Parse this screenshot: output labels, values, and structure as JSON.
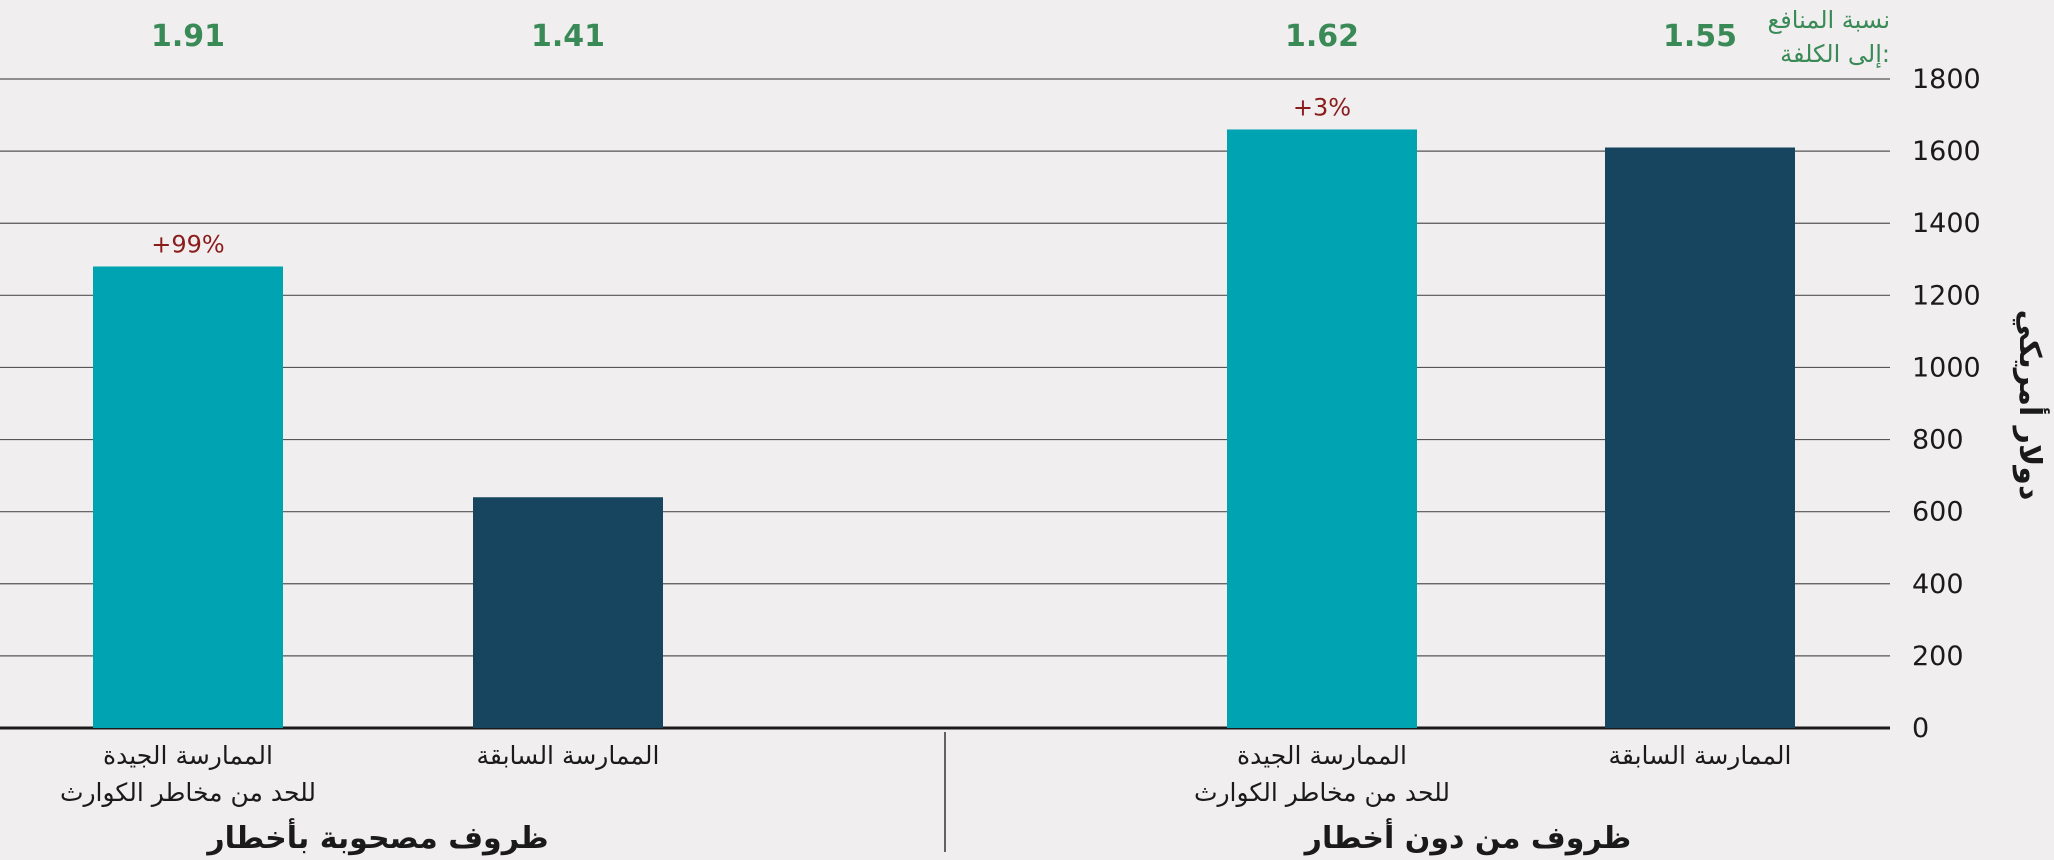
{
  "chart_data": {
    "type": "bar",
    "ylabel": "دولار أمريكي",
    "ylim": [
      0,
      1800
    ],
    "yticks": [
      "0",
      "200",
      "400",
      "600",
      "800",
      "1000",
      "1200",
      "1400",
      "1600",
      "1800"
    ],
    "grid": true,
    "ratio_title_line1": "نسبة المنافع",
    "ratio_title_line2": "إلى الكلفة:",
    "colors": {
      "previous": "#17445e",
      "good": "#00a3b1",
      "ratio": "#3a8a58",
      "percent": "#8a1c1c"
    },
    "groups": [
      {
        "label": "ظروف من دون أخطار",
        "bars": [
          {
            "label_lines": [
              "الممارسة السابقة"
            ],
            "value": 1610,
            "ratio": "1.55",
            "series": "previous"
          },
          {
            "label_lines": [
              "الممارسة الجيدة",
              "للحد من مخاطر الكوارث"
            ],
            "value": 1660,
            "ratio": "1.62",
            "change": "+3%",
            "series": "good"
          }
        ]
      },
      {
        "label": "ظروف مصحوبة بأخطار",
        "bars": [
          {
            "label_lines": [
              "الممارسة السابقة"
            ],
            "value": 640,
            "ratio": "1.41",
            "series": "previous"
          },
          {
            "label_lines": [
              "الممارسة الجيدة",
              "للحد من مخاطر الكوارث"
            ],
            "value": 1280,
            "ratio": "1.91",
            "change": "+99%",
            "series": "good"
          }
        ]
      }
    ]
  }
}
